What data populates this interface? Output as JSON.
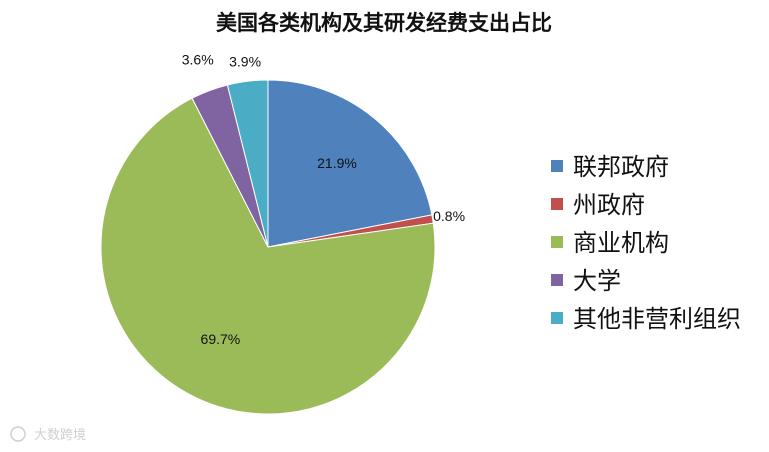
{
  "chart_data": {
    "type": "pie",
    "title": "美国各类机构及其研发经费支出占比",
    "categories": [
      "联邦政府",
      "州政府",
      "商业机构",
      "大学",
      "其他非营利组织"
    ],
    "values": [
      21.9,
      0.8,
      69.7,
      3.6,
      3.9
    ],
    "value_labels": [
      "21.9%",
      "0.8%",
      "69.7%",
      "3.6%",
      "3.9%"
    ],
    "colors": [
      "#4F81BD",
      "#C0504D",
      "#9BBB59",
      "#8064A2",
      "#4BACC6"
    ],
    "legend": "right",
    "start": "top",
    "direction": "clockwise"
  },
  "watermark": "大数跨境"
}
